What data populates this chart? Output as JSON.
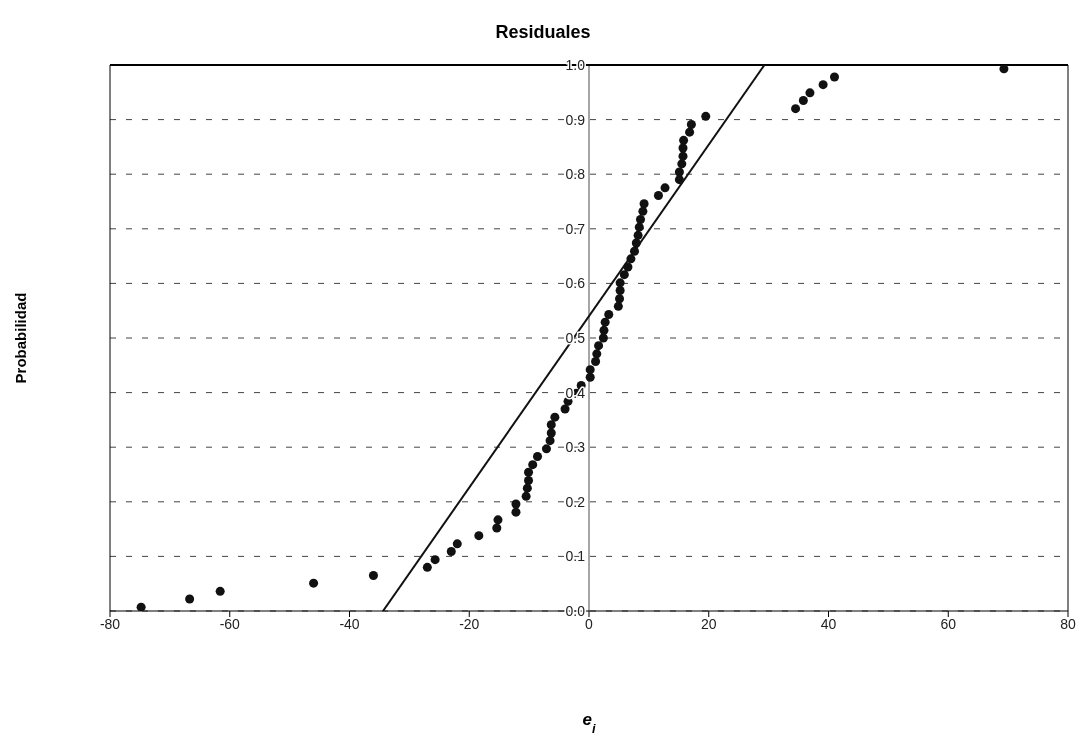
{
  "chart_data": {
    "type": "scatter",
    "title": "Residuales",
    "xlabel": "e$_{i}$",
    "ylabel": "Probabilidad",
    "xlim": [
      -80,
      80
    ],
    "xticks": [
      -80,
      -60,
      -40,
      -20,
      0,
      20,
      40,
      60,
      80
    ],
    "ylim": [
      0,
      1
    ],
    "yticks": [
      {
        "value": 0,
        "label": "0.0"
      },
      {
        "value": 0.1,
        "label": "0.1"
      },
      {
        "value": 0.2,
        "label": "0.2"
      },
      {
        "value": 0.3,
        "label": "0.3"
      },
      {
        "value": 0.4,
        "label": "0.4"
      },
      {
        "value": 0.5,
        "label": "0.5"
      },
      {
        "value": 0.6,
        "label": "0.6"
      },
      {
        "value": 0.7,
        "label": "0.7"
      },
      {
        "value": 0.8,
        "label": "0.8"
      },
      {
        "value": 0.9,
        "label": "0.9"
      },
      {
        "value": 1,
        "label": "1.0"
      }
    ],
    "grid": "y",
    "legend": false,
    "series": [
      {
        "type": "scatter",
        "marker": "circle",
        "color": "#111111",
        "x": [
          -74.8,
          -66.7,
          -61.6,
          -46,
          -36,
          -27,
          -25.7,
          -23,
          -22,
          -18.4,
          -15.4,
          -15.2,
          -12.2,
          -12.2,
          -10.5,
          -10.3,
          -10.1,
          -10.1,
          -9.4,
          -8.6,
          -7.1,
          -6.5,
          -6.3,
          -6.3,
          -5.7,
          -4,
          -3.5,
          -2.1,
          -1.3,
          0.2,
          0.2,
          1.1,
          1.3,
          1.6,
          2.4,
          2.5,
          2.7,
          3.3,
          4.9,
          5.1,
          5.2,
          5.2,
          5.9,
          6.5,
          7,
          7.6,
          7.9,
          8.2,
          8.4,
          8.6,
          9,
          9.2,
          11.6,
          12.7,
          15.1,
          15.1,
          15.5,
          15.7,
          15.7,
          15.8,
          16.8,
          17.1,
          19.5,
          34.5,
          35.8,
          36.9,
          39.1,
          41,
          69.3
        ],
        "values": [
          0.007,
          0.022,
          0.036,
          0.051,
          0.065,
          0.08,
          0.094,
          0.109,
          0.123,
          0.138,
          0.152,
          0.167,
          0.181,
          0.196,
          0.21,
          0.225,
          0.239,
          0.254,
          0.268,
          0.283,
          0.297,
          0.312,
          0.326,
          0.341,
          0.355,
          0.37,
          0.384,
          0.399,
          0.413,
          0.428,
          0.442,
          0.457,
          0.471,
          0.486,
          0.5,
          0.514,
          0.529,
          0.543,
          0.558,
          0.572,
          0.587,
          0.601,
          0.616,
          0.63,
          0.645,
          0.659,
          0.674,
          0.688,
          0.703,
          0.717,
          0.732,
          0.746,
          0.761,
          0.775,
          0.79,
          0.804,
          0.819,
          0.833,
          0.848,
          0.862,
          0.877,
          0.891,
          0.906,
          0.92,
          0.935,
          0.949,
          0.964,
          0.978,
          0.993
        ]
      },
      {
        "type": "line",
        "marker": "none",
        "line_style": "solid",
        "color": "#111111",
        "x": [
          -34.4,
          29.3
        ],
        "values": [
          0,
          1
        ]
      }
    ]
  }
}
